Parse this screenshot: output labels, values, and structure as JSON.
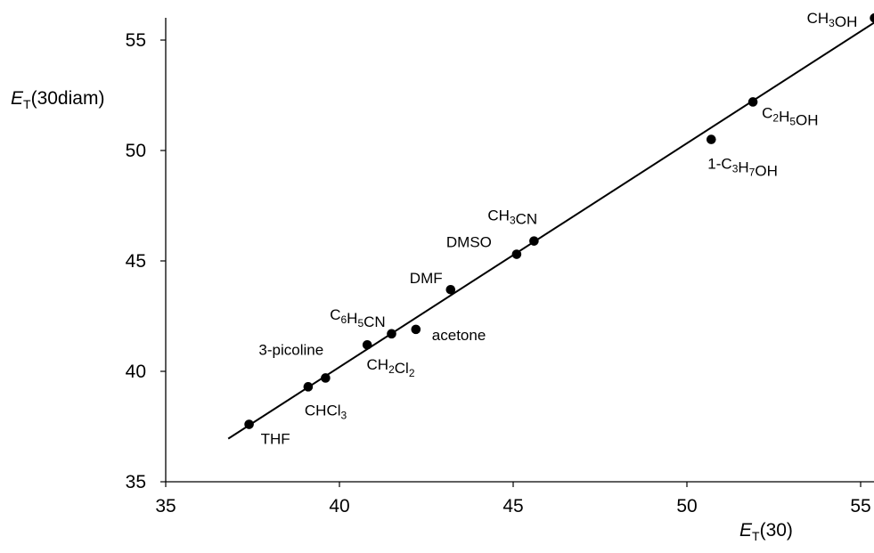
{
  "chart_data": {
    "type": "scatter",
    "title": "",
    "xlabel": {
      "symbol": "E",
      "sub": "T",
      "rest": "(30)"
    },
    "ylabel": {
      "symbol": "E",
      "sub": "T",
      "rest": "(30diam)"
    },
    "xlim": [
      35,
      56
    ],
    "ylim": [
      35,
      56
    ],
    "xticks": [
      35,
      40,
      45,
      50,
      55
    ],
    "yticks": [
      35,
      40,
      45,
      50,
      55
    ],
    "grid": false,
    "legend": "none",
    "points": [
      {
        "label": "THF",
        "x": 37.4,
        "y": 37.6
      },
      {
        "label": "CHCl3",
        "x": 39.1,
        "y": 39.3
      },
      {
        "label": "3-picoline",
        "x": 39.6,
        "y": 39.7
      },
      {
        "label": "C6H5CN",
        "x": 40.8,
        "y": 41.2
      },
      {
        "label": "CH2Cl2",
        "x": 41.5,
        "y": 41.7
      },
      {
        "label": "acetone",
        "x": 42.2,
        "y": 41.9
      },
      {
        "label": "DMF",
        "x": 43.2,
        "y": 43.7
      },
      {
        "label": "DMSO",
        "x": 45.1,
        "y": 45.3
      },
      {
        "label": "CH3CN",
        "x": 45.6,
        "y": 45.9
      },
      {
        "label": "1-C3H7OH",
        "x": 50.7,
        "y": 50.5
      },
      {
        "label": "C2H5OH",
        "x": 51.9,
        "y": 52.2
      },
      {
        "label": "CH3OH",
        "x": 55.4,
        "y": 56.0
      }
    ],
    "fit_line": {
      "x": [
        36.8,
        55.4
      ],
      "y": [
        36.95,
        55.8
      ]
    },
    "colors": {
      "marker": "#000000",
      "line": "#000000",
      "axis": "#000000"
    }
  }
}
